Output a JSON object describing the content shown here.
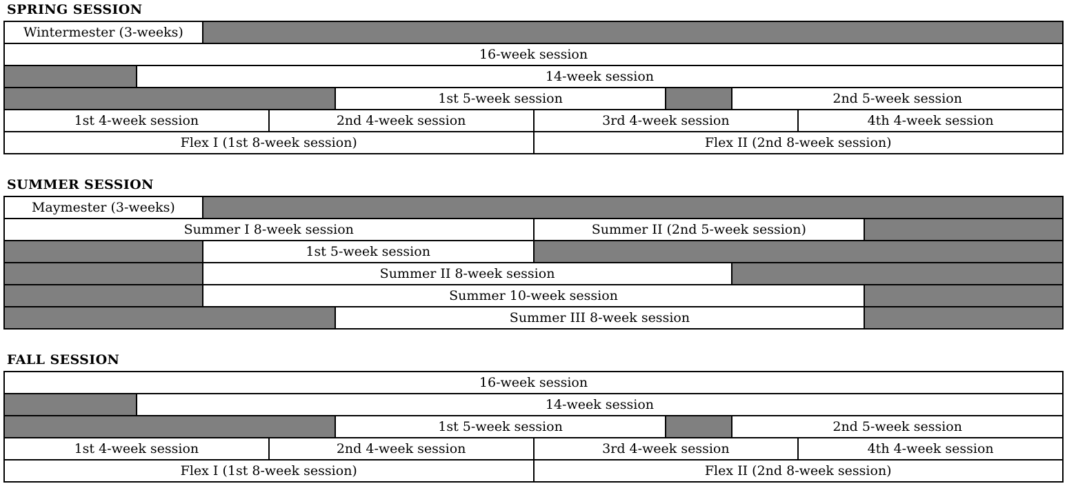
{
  "colors": {
    "session_fill": "#ffffff",
    "gap_fill": "#808080",
    "border": "#000000",
    "text": "#000000"
  },
  "timeline": {
    "weeks_per_row": 16
  },
  "sections": [
    {
      "id": "spring",
      "title": "SPRING SESSION",
      "rows": [
        {
          "cells": [
            {
              "label": "Wintermester (3-weeks)",
              "weeks": 3,
              "type": "session"
            },
            {
              "label": "",
              "weeks": 13,
              "type": "gap"
            }
          ]
        },
        {
          "cells": [
            {
              "label": "16-week session",
              "weeks": 16,
              "type": "session"
            }
          ]
        },
        {
          "cells": [
            {
              "label": "",
              "weeks": 2,
              "type": "gap"
            },
            {
              "label": "14-week session",
              "weeks": 14,
              "type": "session"
            }
          ]
        },
        {
          "cells": [
            {
              "label": "",
              "weeks": 5,
              "type": "gap"
            },
            {
              "label": "1st 5-week session",
              "weeks": 5,
              "type": "session"
            },
            {
              "label": "",
              "weeks": 1,
              "type": "gap"
            },
            {
              "label": "2nd 5-week session",
              "weeks": 5,
              "type": "session"
            }
          ]
        },
        {
          "cells": [
            {
              "label": "1st 4-week session",
              "weeks": 4,
              "type": "session"
            },
            {
              "label": "2nd 4-week session",
              "weeks": 4,
              "type": "session"
            },
            {
              "label": "3rd 4-week session",
              "weeks": 4,
              "type": "session"
            },
            {
              "label": "4th 4-week session",
              "weeks": 4,
              "type": "session"
            }
          ]
        },
        {
          "cells": [
            {
              "label": "Flex I (1st 8-week session)",
              "weeks": 8,
              "type": "session"
            },
            {
              "label": "Flex II (2nd 8-week session)",
              "weeks": 8,
              "type": "session"
            }
          ]
        }
      ]
    },
    {
      "id": "summer",
      "title": "SUMMER SESSION",
      "rows": [
        {
          "cells": [
            {
              "label": "Maymester (3-weeks)",
              "weeks": 3,
              "type": "session"
            },
            {
              "label": "",
              "weeks": 13,
              "type": "gap"
            }
          ]
        },
        {
          "cells": [
            {
              "label": "Summer I 8-week session",
              "weeks": 8,
              "type": "session"
            },
            {
              "label": "Summer II (2nd 5-week session)",
              "weeks": 5,
              "type": "session"
            },
            {
              "label": "",
              "weeks": 3,
              "type": "gap"
            }
          ]
        },
        {
          "cells": [
            {
              "label": "",
              "weeks": 3,
              "type": "gap"
            },
            {
              "label": "1st 5-week session",
              "weeks": 5,
              "type": "session"
            },
            {
              "label": "",
              "weeks": 8,
              "type": "gap"
            }
          ]
        },
        {
          "cells": [
            {
              "label": "",
              "weeks": 3,
              "type": "gap"
            },
            {
              "label": "Summer II 8-week session",
              "weeks": 8,
              "type": "session"
            },
            {
              "label": "",
              "weeks": 5,
              "type": "gap"
            }
          ]
        },
        {
          "cells": [
            {
              "label": "",
              "weeks": 3,
              "type": "gap"
            },
            {
              "label": "Summer 10-week session",
              "weeks": 10,
              "type": "session"
            },
            {
              "label": "",
              "weeks": 3,
              "type": "gap"
            }
          ]
        },
        {
          "cells": [
            {
              "label": "",
              "weeks": 5,
              "type": "gap"
            },
            {
              "label": "Summer III 8-week session",
              "weeks": 8,
              "type": "session"
            },
            {
              "label": "",
              "weeks": 3,
              "type": "gap"
            }
          ]
        }
      ]
    },
    {
      "id": "fall",
      "title": "FALL SESSION",
      "rows": [
        {
          "cells": [
            {
              "label": "16-week session",
              "weeks": 16,
              "type": "session"
            }
          ]
        },
        {
          "cells": [
            {
              "label": "",
              "weeks": 2,
              "type": "gap"
            },
            {
              "label": "14-week session",
              "weeks": 14,
              "type": "session"
            }
          ]
        },
        {
          "cells": [
            {
              "label": "",
              "weeks": 5,
              "type": "gap"
            },
            {
              "label": "1st 5-week session",
              "weeks": 5,
              "type": "session"
            },
            {
              "label": "",
              "weeks": 1,
              "type": "gap"
            },
            {
              "label": "2nd 5-week session",
              "weeks": 5,
              "type": "session"
            }
          ]
        },
        {
          "cells": [
            {
              "label": "1st 4-week session",
              "weeks": 4,
              "type": "session"
            },
            {
              "label": "2nd 4-week session",
              "weeks": 4,
              "type": "session"
            },
            {
              "label": "3rd 4-week session",
              "weeks": 4,
              "type": "session"
            },
            {
              "label": "4th 4-week session",
              "weeks": 4,
              "type": "session"
            }
          ]
        },
        {
          "cells": [
            {
              "label": "Flex I (1st 8-week session)",
              "weeks": 8,
              "type": "session"
            },
            {
              "label": "Flex II (2nd 8-week session)",
              "weeks": 8,
              "type": "session"
            }
          ]
        }
      ]
    }
  ]
}
